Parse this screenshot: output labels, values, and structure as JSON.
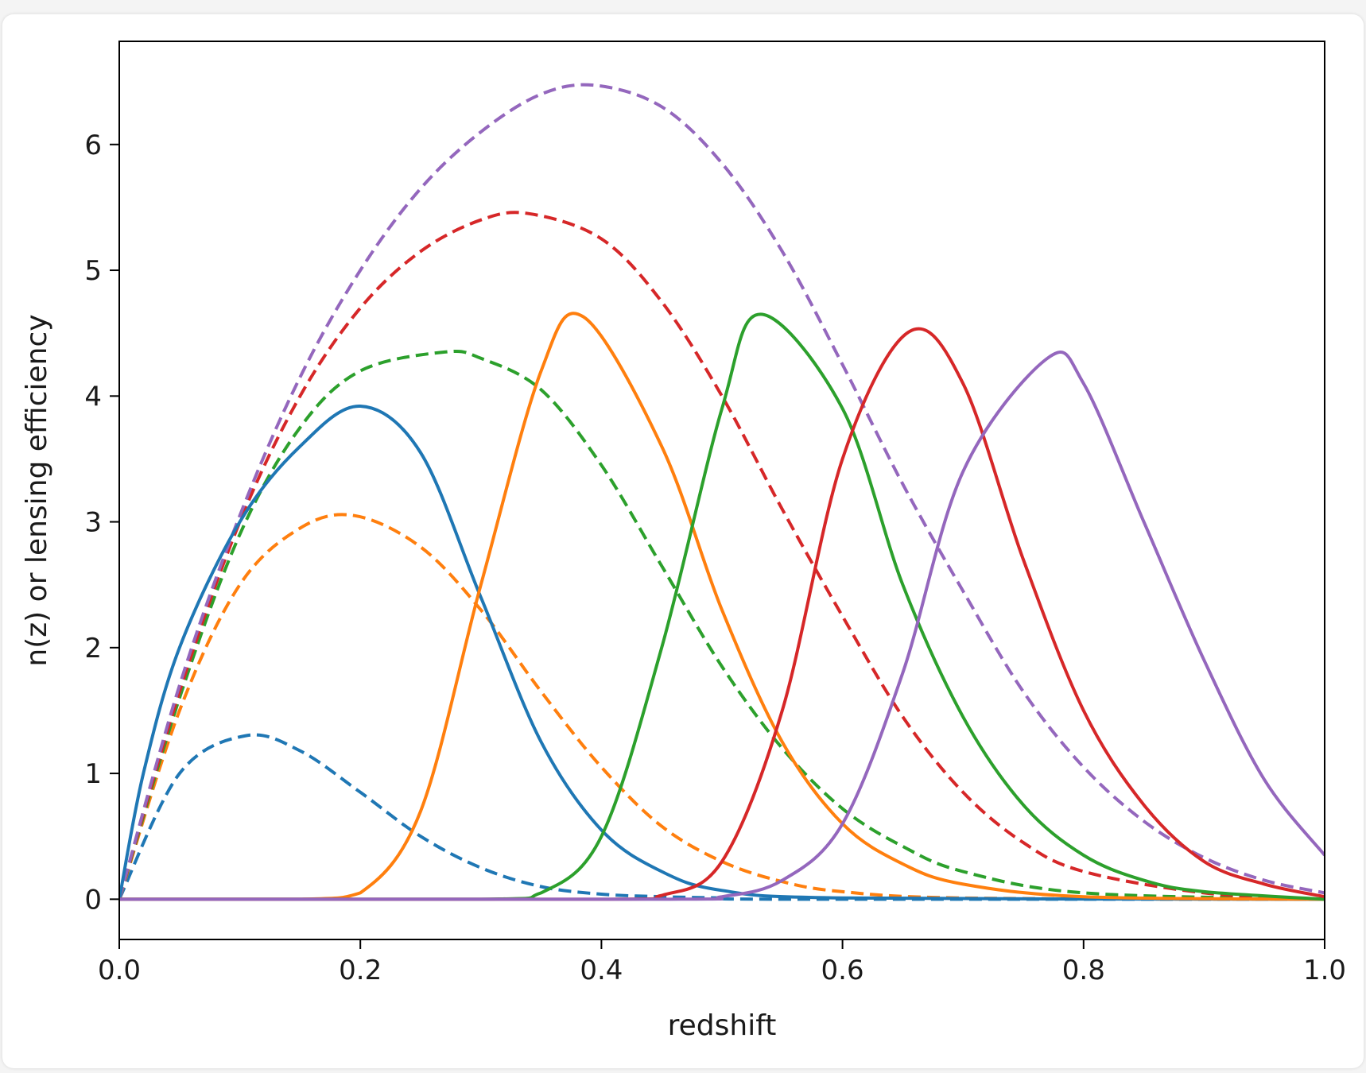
{
  "chart_data": {
    "type": "line",
    "xlabel": "redshift",
    "ylabel": "n(z) or lensing efficiency",
    "xlim": [
      0.0,
      1.0
    ],
    "ylim": [
      -0.32,
      6.82
    ],
    "x_ticks": [
      "0.0",
      "0.2",
      "0.4",
      "0.6",
      "0.8",
      "1.0"
    ],
    "y_ticks": [
      "0",
      "1",
      "2",
      "3",
      "4",
      "5",
      "6"
    ],
    "grid": false,
    "legend": "none",
    "series": [
      {
        "style": "solid",
        "color": "#1f77b4",
        "peak_x": 0.205,
        "peak_y": 3.92,
        "x": [
          0.0,
          0.02,
          0.05,
          0.1,
          0.15,
          0.2,
          0.25,
          0.3,
          0.35,
          0.4,
          0.45,
          0.5,
          0.6,
          1.0
        ],
        "y": [
          0.0,
          1.0,
          2.0,
          3.0,
          3.6,
          3.92,
          3.55,
          2.4,
          1.25,
          0.55,
          0.22,
          0.07,
          0.01,
          0.0
        ]
      },
      {
        "style": "solid",
        "color": "#ff7f0e",
        "peak_x": 0.385,
        "peak_y": 4.63,
        "x": [
          0.0,
          0.15,
          0.2,
          0.25,
          0.3,
          0.35,
          0.385,
          0.45,
          0.5,
          0.55,
          0.6,
          0.65,
          0.7,
          0.8,
          1.0
        ],
        "y": [
          0.0,
          0.0,
          0.05,
          0.7,
          2.5,
          4.2,
          4.63,
          3.6,
          2.3,
          1.25,
          0.6,
          0.28,
          0.12,
          0.02,
          0.0
        ]
      },
      {
        "style": "solid",
        "color": "#2ca02c",
        "peak_x": 0.532,
        "peak_y": 4.65,
        "x": [
          0.0,
          0.3,
          0.35,
          0.4,
          0.45,
          0.5,
          0.532,
          0.6,
          0.65,
          0.7,
          0.75,
          0.8,
          0.85,
          0.9,
          1.0
        ],
        "y": [
          0.0,
          0.0,
          0.05,
          0.5,
          2.0,
          3.9,
          4.65,
          3.9,
          2.5,
          1.45,
          0.75,
          0.35,
          0.15,
          0.06,
          0.0
        ]
      },
      {
        "style": "solid",
        "color": "#d62728",
        "peak_x": 0.655,
        "peak_y": 4.51,
        "x": [
          0.0,
          0.4,
          0.45,
          0.5,
          0.55,
          0.6,
          0.655,
          0.7,
          0.75,
          0.8,
          0.85,
          0.9,
          0.95,
          1.0
        ],
        "y": [
          0.0,
          0.0,
          0.03,
          0.3,
          1.5,
          3.5,
          4.51,
          4.1,
          2.7,
          1.5,
          0.75,
          0.3,
          0.12,
          0.02
        ]
      },
      {
        "style": "solid",
        "color": "#9467bd",
        "peak_x": 0.77,
        "peak_y": 4.3,
        "x": [
          0.0,
          0.45,
          0.5,
          0.55,
          0.6,
          0.65,
          0.7,
          0.77,
          0.8,
          0.85,
          0.9,
          0.95,
          1.0
        ],
        "y": [
          0.0,
          0.0,
          0.02,
          0.15,
          0.6,
          1.8,
          3.4,
          4.3,
          4.1,
          3.0,
          1.9,
          0.95,
          0.35
        ]
      },
      {
        "style": "dashed",
        "color": "#1f77b4",
        "peak_x": 0.105,
        "peak_y": 1.3,
        "x": [
          0.0,
          0.05,
          0.105,
          0.15,
          0.2,
          0.25,
          0.3,
          0.35,
          0.4,
          0.45,
          0.5,
          0.55,
          1.0
        ],
        "y": [
          0.0,
          1.0,
          1.3,
          1.18,
          0.85,
          0.5,
          0.25,
          0.1,
          0.04,
          0.02,
          0.01,
          0.0,
          0.0
        ]
      },
      {
        "style": "dashed",
        "color": "#ff7f0e",
        "peak_x": 0.195,
        "peak_y": 3.05,
        "x": [
          0.0,
          0.05,
          0.1,
          0.15,
          0.195,
          0.25,
          0.3,
          0.35,
          0.4,
          0.45,
          0.5,
          0.55,
          0.6,
          0.7,
          1.0
        ],
        "y": [
          0.0,
          1.5,
          2.5,
          2.95,
          3.05,
          2.8,
          2.3,
          1.65,
          1.05,
          0.58,
          0.3,
          0.14,
          0.06,
          0.01,
          0.0
        ]
      },
      {
        "style": "dashed",
        "color": "#2ca02c",
        "peak_x": 0.27,
        "peak_y": 4.35,
        "x": [
          0.0,
          0.05,
          0.1,
          0.15,
          0.2,
          0.27,
          0.3,
          0.35,
          0.4,
          0.45,
          0.5,
          0.55,
          0.6,
          0.65,
          0.7,
          0.8,
          1.0
        ],
        "y": [
          0.0,
          1.6,
          2.9,
          3.75,
          4.2,
          4.35,
          4.3,
          4.05,
          3.45,
          2.65,
          1.85,
          1.2,
          0.72,
          0.42,
          0.22,
          0.05,
          0.0
        ]
      },
      {
        "style": "dashed",
        "color": "#d62728",
        "peak_x": 0.34,
        "peak_y": 5.45,
        "x": [
          0.0,
          0.05,
          0.1,
          0.15,
          0.2,
          0.25,
          0.3,
          0.34,
          0.4,
          0.45,
          0.5,
          0.55,
          0.6,
          0.65,
          0.7,
          0.75,
          0.8,
          0.9,
          1.0
        ],
        "y": [
          0.0,
          1.65,
          3.0,
          4.0,
          4.7,
          5.15,
          5.4,
          5.45,
          5.25,
          4.75,
          4.0,
          3.1,
          2.25,
          1.45,
          0.85,
          0.45,
          0.22,
          0.05,
          0.0
        ]
      },
      {
        "style": "dashed",
        "color": "#9467bd",
        "peak_x": 0.395,
        "peak_y": 6.47,
        "x": [
          0.0,
          0.05,
          0.1,
          0.15,
          0.2,
          0.25,
          0.3,
          0.35,
          0.395,
          0.45,
          0.5,
          0.55,
          0.6,
          0.65,
          0.7,
          0.75,
          0.8,
          0.85,
          0.9,
          0.95,
          1.0
        ],
        "y": [
          0.0,
          1.7,
          3.05,
          4.15,
          5.0,
          5.65,
          6.1,
          6.4,
          6.47,
          6.3,
          5.85,
          5.15,
          4.25,
          3.3,
          2.45,
          1.65,
          1.05,
          0.62,
          0.33,
          0.15,
          0.05
        ]
      }
    ]
  }
}
